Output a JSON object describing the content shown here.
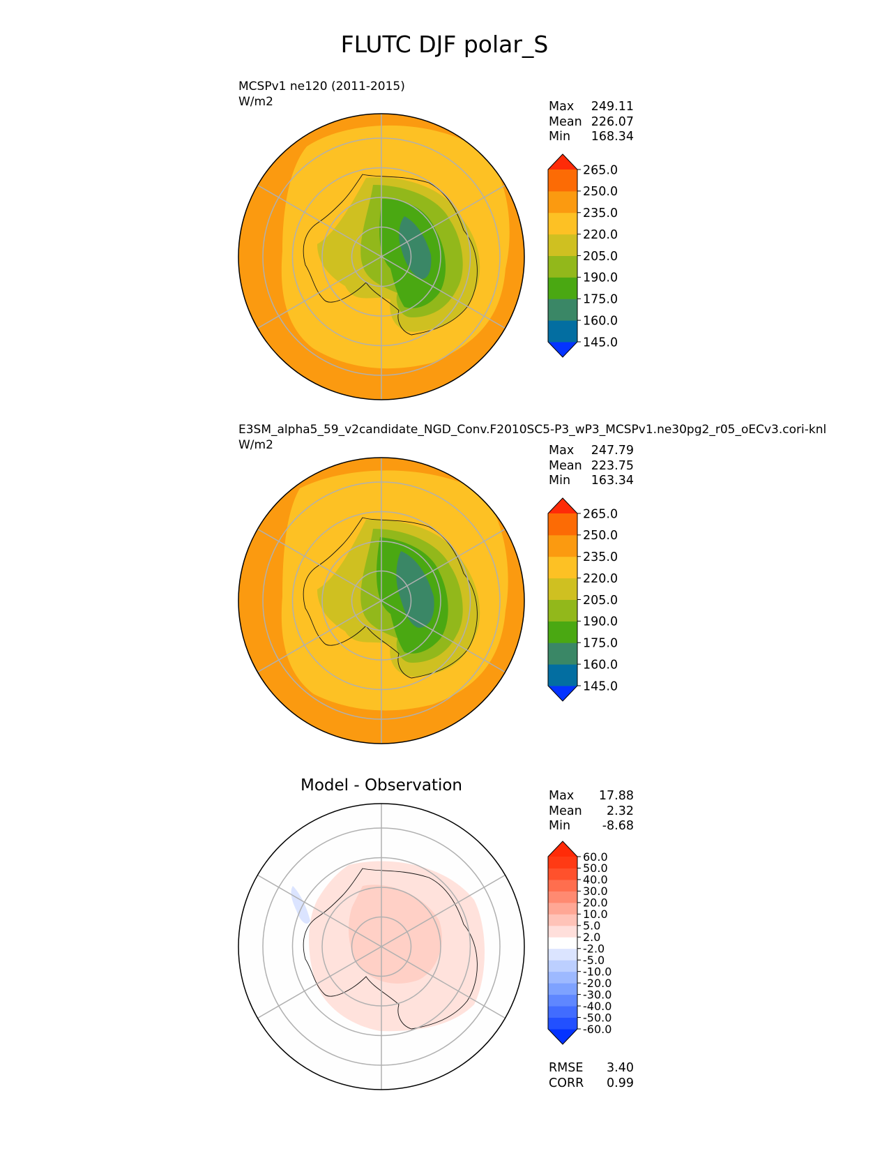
{
  "title": "FLUTC DJF polar_S",
  "panels": [
    {
      "id": "test",
      "name": "MCSPv1 ne120 (2011-2015)",
      "units": "W/m2",
      "stats": [
        {
          "label": "Max",
          "value": "249.11"
        },
        {
          "label": "Mean",
          "value": "226.07"
        },
        {
          "label": "Min",
          "value": "168.34"
        }
      ]
    },
    {
      "id": "ref",
      "name": "E3SM_alpha5_59_v2candidate_NGD_Conv.F2010SC5-P3_wP3_MCSPv1.ne30pg2_r05_oECv3.cori-knl",
      "units": "W/m2",
      "stats": [
        {
          "label": "Max",
          "value": "247.79"
        },
        {
          "label": "Mean",
          "value": "223.75"
        },
        {
          "label": "Min",
          "value": "163.34"
        }
      ]
    },
    {
      "id": "diff",
      "title": "Model - Observation",
      "stats": [
        {
          "label": "Max",
          "value": "17.88"
        },
        {
          "label": "Mean",
          "value": "2.32"
        },
        {
          "label": "Min",
          "value": "-8.68"
        }
      ],
      "metrics": [
        {
          "label": "RMSE",
          "value": "3.40"
        },
        {
          "label": "CORR",
          "value": "0.99"
        }
      ]
    }
  ],
  "colorbars": {
    "main": {
      "ticks": [
        "145.0",
        "160.0",
        "175.0",
        "190.0",
        "205.0",
        "220.0",
        "235.0",
        "250.0",
        "265.0"
      ],
      "colors": [
        "#0433ff",
        "#036ea1",
        "#3a8766",
        "#4aa812",
        "#92b81b",
        "#cfc021",
        "#fdc124",
        "#fb9a10",
        "#fc6b05",
        "#fe2b08"
      ]
    },
    "diff": {
      "ticks": [
        "-60.0",
        "-50.0",
        "-40.0",
        "-30.0",
        "-20.0",
        "-10.0",
        "-5.0",
        "-2.0",
        "2.0",
        "5.0",
        "10.0",
        "20.0",
        "30.0",
        "40.0",
        "50.0",
        "60.0"
      ],
      "colors": [
        "#0433ff",
        "#2250ff",
        "#416cff",
        "#5f87ff",
        "#7ea2ff",
        "#9db9ff",
        "#bccfff",
        "#dbe4ff",
        "#ffffff",
        "#ffdfdb",
        "#ffc3b8",
        "#ffa795",
        "#ff8a71",
        "#ff6e4e",
        "#ff512c",
        "#ff3a14",
        "#ff2b08"
      ]
    }
  },
  "chart_data": [
    {
      "type": "heatmap",
      "projection": "south-polar-stereographic",
      "title": "MCSPv1 ne120 (2011-2015)",
      "units": "W/m2",
      "max": 249.11,
      "mean": 226.07,
      "min": 168.34,
      "levels": [
        145,
        160,
        175,
        190,
        205,
        220,
        235,
        250,
        265
      ],
      "colorbar_extend": "both"
    },
    {
      "type": "heatmap",
      "projection": "south-polar-stereographic",
      "title": "E3SM_alpha5_59_v2candidate_NGD_Conv.F2010SC5-P3_wP3_MCSPv1.ne30pg2_r05_oECv3.cori-knl",
      "units": "W/m2",
      "max": 247.79,
      "mean": 223.75,
      "min": 163.34,
      "levels": [
        145,
        160,
        175,
        190,
        205,
        220,
        235,
        250,
        265
      ],
      "colorbar_extend": "both"
    },
    {
      "type": "heatmap",
      "projection": "south-polar-stereographic",
      "title": "Model - Observation",
      "max": 17.88,
      "mean": 2.32,
      "min": -8.68,
      "rmse": 3.4,
      "corr": 0.99,
      "levels": [
        -60,
        -50,
        -40,
        -30,
        -20,
        -10,
        -5,
        -2,
        2,
        5,
        10,
        20,
        30,
        40,
        50,
        60
      ],
      "colorbar_extend": "both"
    }
  ]
}
